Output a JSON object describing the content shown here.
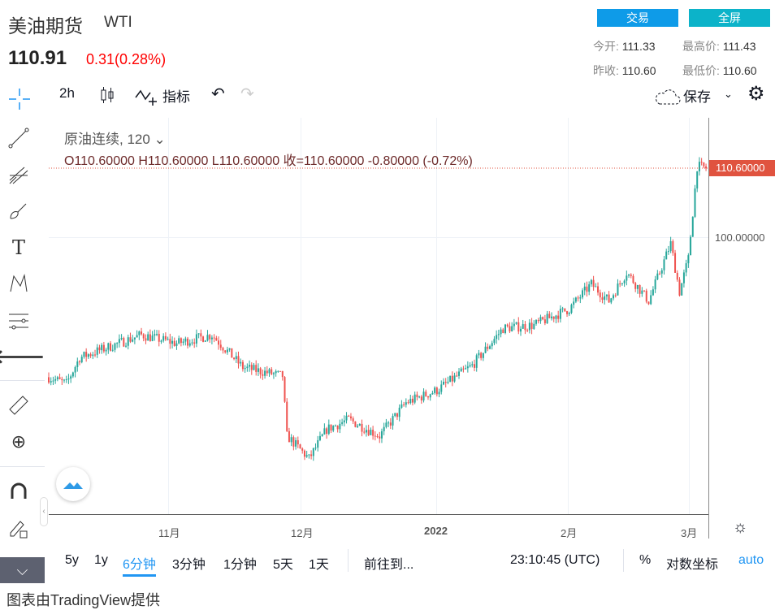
{
  "header": {
    "title": "美油期货",
    "symbol": "WTI",
    "price": "110.91",
    "change": "0.31(0.28%)",
    "trade_button": "交易",
    "fullscreen_button": "全屏",
    "stats": [
      {
        "label": "今开:",
        "value": "111.33"
      },
      {
        "label": "最高价:",
        "value": "111.43"
      },
      {
        "label": "昨收:",
        "value": "110.60"
      },
      {
        "label": "最低价:",
        "value": "110.60"
      }
    ]
  },
  "toolbar": {
    "interval": "2h",
    "indicators": "指标",
    "save": "保存"
  },
  "legend": {
    "name": "原油连续, 120",
    "ohlc": "O110.60000  H110.60000  L110.60000  收=110.60000  -0.80000 (-0.72%)"
  },
  "chart_data": {
    "type": "candlestick",
    "title": "原油连续, 120",
    "x_tick_labels": [
      "11月",
      "12月",
      "2022",
      "2月",
      "3月"
    ],
    "y_tick_labels": [
      "100.00000"
    ],
    "last_price_label": "110.60000",
    "last_price": 110.6,
    "ylim": [
      60,
      115
    ],
    "path_days_from_oct5": [
      0,
      4,
      7,
      21,
      29,
      37,
      44,
      53,
      54,
      59,
      63,
      68,
      75,
      81,
      88,
      96,
      103,
      110,
      118,
      123,
      127,
      131,
      136,
      141,
      143,
      145,
      147,
      149
    ],
    "path_prices": [
      78.5,
      77.5,
      81.5,
      85,
      83.7,
      85,
      80,
      78.7,
      69.5,
      66,
      70.5,
      72,
      69.5,
      74.6,
      76.5,
      80.3,
      86,
      86.5,
      89,
      92.8,
      90.2,
      94.6,
      90.2,
      99,
      91.6,
      96.7,
      110.9,
      110.6
    ],
    "colors": {
      "up": "#26a69a",
      "down": "#ef5350",
      "last": "#e0533f"
    }
  },
  "bottom": {
    "ranges": [
      "5y",
      "1y",
      "6分钟",
      "3分钟",
      "1分钟",
      "5天",
      "1天"
    ],
    "active_range": "6分钟",
    "goto": "前往到...",
    "time": "23:10:45 (UTC)",
    "percent": "%",
    "log": "对数坐标",
    "auto": "auto"
  },
  "footer": "图表由TradingView提供"
}
